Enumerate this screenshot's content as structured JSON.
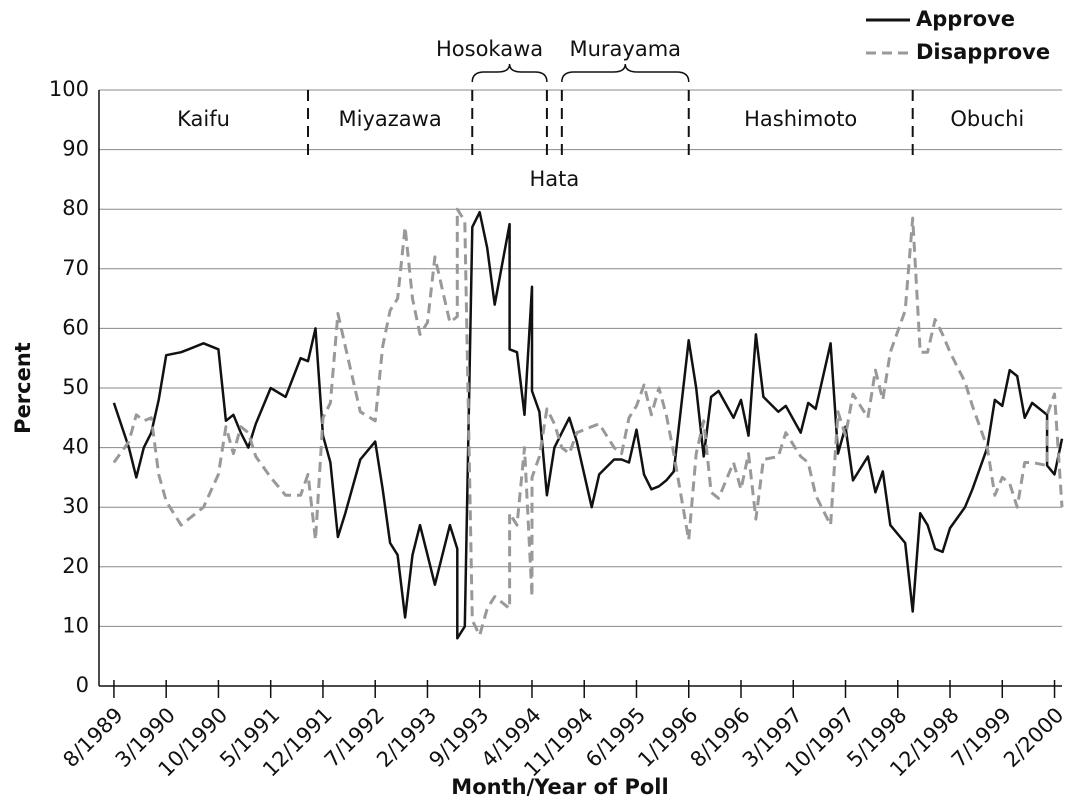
{
  "chart_data": {
    "type": "line",
    "x_label": "Month/Year of Poll",
    "y_label": "Percent",
    "x": [
      "8/1989",
      "10/1989",
      "11/1989",
      "12/1989",
      "1/1990",
      "2/1990",
      "3/1990",
      "5/1990",
      "6/1990",
      "8/1990",
      "10/1990",
      "11/1990",
      "12/1990",
      "1/1991",
      "2/1991",
      "3/1991",
      "5/1991",
      "7/1991",
      "9/1991",
      "10/1991",
      "11/1991",
      "12/1991",
      "1/1992",
      "2/1992",
      "3/1992",
      "5/1992",
      "7/1992",
      "8/1992",
      "9/1992",
      "10/1992",
      "11/1992",
      "12/1992",
      "1/1993",
      "2/1993",
      "3/1993",
      "5/1993",
      "6/1993",
      "6/1993",
      "7/1993",
      "8/1993",
      "9/1993",
      "10/1993",
      "11/1993",
      "1/1994",
      "1/1994",
      "2/1994",
      "3/1994",
      "4/1994",
      "4/1994",
      "5/1994",
      "6/1994",
      "7/1994",
      "8/1994",
      "9/1994",
      "10/1994",
      "12/1994",
      "1/1995",
      "3/1995",
      "4/1995",
      "5/1995",
      "6/1995",
      "7/1995",
      "8/1995",
      "9/1995",
      "10/1995",
      "11/1995",
      "1/1996",
      "2/1996",
      "3/1996",
      "4/1996",
      "5/1996",
      "7/1996",
      "8/1996",
      "9/1996",
      "10/1996",
      "11/1996",
      "1/1997",
      "2/1997",
      "4/1997",
      "5/1997",
      "6/1997",
      "8/1997",
      "9/1997",
      "10/1997",
      "11/1997",
      "1/1998",
      "2/1998",
      "3/1998",
      "4/1998",
      "6/1998",
      "7/1998",
      "8/1998",
      "9/1998",
      "10/1998",
      "11/1998",
      "12/1998",
      "2/1999",
      "3/1999",
      "5/1999",
      "6/1999",
      "7/1999",
      "8/1999",
      "9/1999",
      "10/1999",
      "11/1999",
      "1/2000",
      "1/2000",
      "2/2000",
      "3/2000"
    ],
    "series": [
      {
        "name": "Approve",
        "color": "#111111",
        "line_style": "solid",
        "values": [
          47.5,
          40,
          35,
          40,
          42.5,
          48,
          55.5,
          56,
          56.5,
          57.5,
          56.5,
          44.5,
          45.5,
          42.5,
          40,
          44,
          50,
          48.5,
          55,
          54.5,
          60,
          42,
          37.5,
          25,
          29,
          38,
          41,
          33,
          24,
          22,
          11.5,
          22,
          27,
          22,
          17,
          27,
          23,
          8,
          10,
          77,
          79.5,
          73.5,
          64,
          77.5,
          56.5,
          56,
          45.5,
          67,
          49.5,
          46,
          32,
          40,
          42.5,
          45,
          41,
          30,
          35.5,
          38,
          38,
          37.5,
          43,
          35.5,
          33,
          33.5,
          34.5,
          36,
          58,
          50,
          38.5,
          48.5,
          49.5,
          45,
          48,
          42,
          59,
          48.5,
          46,
          47,
          42.5,
          47.5,
          46.5,
          57.5,
          39,
          43.5,
          34.5,
          38.5,
          32.5,
          36,
          27,
          24,
          12.5,
          29,
          27,
          23,
          22.5,
          26.5,
          30,
          33,
          40,
          48,
          47,
          53,
          52,
          45,
          47.5,
          45.5,
          37,
          35.5,
          41.5
        ]
      },
      {
        "name": "Disapprove",
        "color": "#999999",
        "line_style": "dashed",
        "values": [
          37.5,
          41,
          45.5,
          44.5,
          45,
          35.5,
          31,
          27,
          28,
          30,
          35.5,
          43.5,
          39,
          43.5,
          42.5,
          38.5,
          35,
          32,
          32,
          35.5,
          24.5,
          45,
          47.5,
          62.5,
          57,
          46,
          44.5,
          57,
          63,
          65,
          77,
          65,
          59,
          61,
          72,
          61,
          62,
          80,
          78,
          11,
          8.5,
          13,
          15,
          13,
          29,
          27,
          40,
          15,
          35,
          38.5,
          46.5,
          44,
          40,
          39,
          42.5,
          43.5,
          44,
          40,
          39,
          45,
          47,
          50.5,
          45.5,
          50,
          45.5,
          39,
          24.5,
          39,
          44.5,
          32.5,
          31.5,
          37.5,
          33,
          39,
          28,
          38,
          38.5,
          42.5,
          38.5,
          37.5,
          32,
          27,
          46,
          42,
          49,
          45,
          53,
          48,
          56,
          63,
          78.5,
          56,
          56,
          61.5,
          59,
          56,
          51,
          47,
          40,
          32,
          35,
          34,
          30,
          37.5,
          37.5,
          37,
          45.5,
          49,
          30
        ]
      }
    ],
    "xlim": [
      "6/1989",
      "3/2000"
    ],
    "xticks": [
      "8/1989",
      "3/1990",
      "10/1990",
      "5/1991",
      "12/1991",
      "7/1992",
      "2/1993",
      "9/1993",
      "4/1994",
      "11/1994",
      "6/1995",
      "1/1996",
      "8/1996",
      "3/1997",
      "10/1997",
      "5/1998",
      "12/1998",
      "7/1999",
      "2/2000"
    ],
    "ylim": [
      0,
      100
    ],
    "yticks": [
      0,
      10,
      20,
      30,
      40,
      50,
      60,
      70,
      80,
      90,
      100
    ],
    "grid": true,
    "legend": "top-right",
    "dividers": [
      "10/1991",
      "8/1993",
      "6/1994",
      "8/1994",
      "1/1996",
      "7/1998"
    ],
    "annotations": [
      "Kaifu",
      "Miyazawa",
      "Hosokawa",
      "Hata",
      "Murayama",
      "Hashimoto",
      "Obuchi"
    ]
  }
}
